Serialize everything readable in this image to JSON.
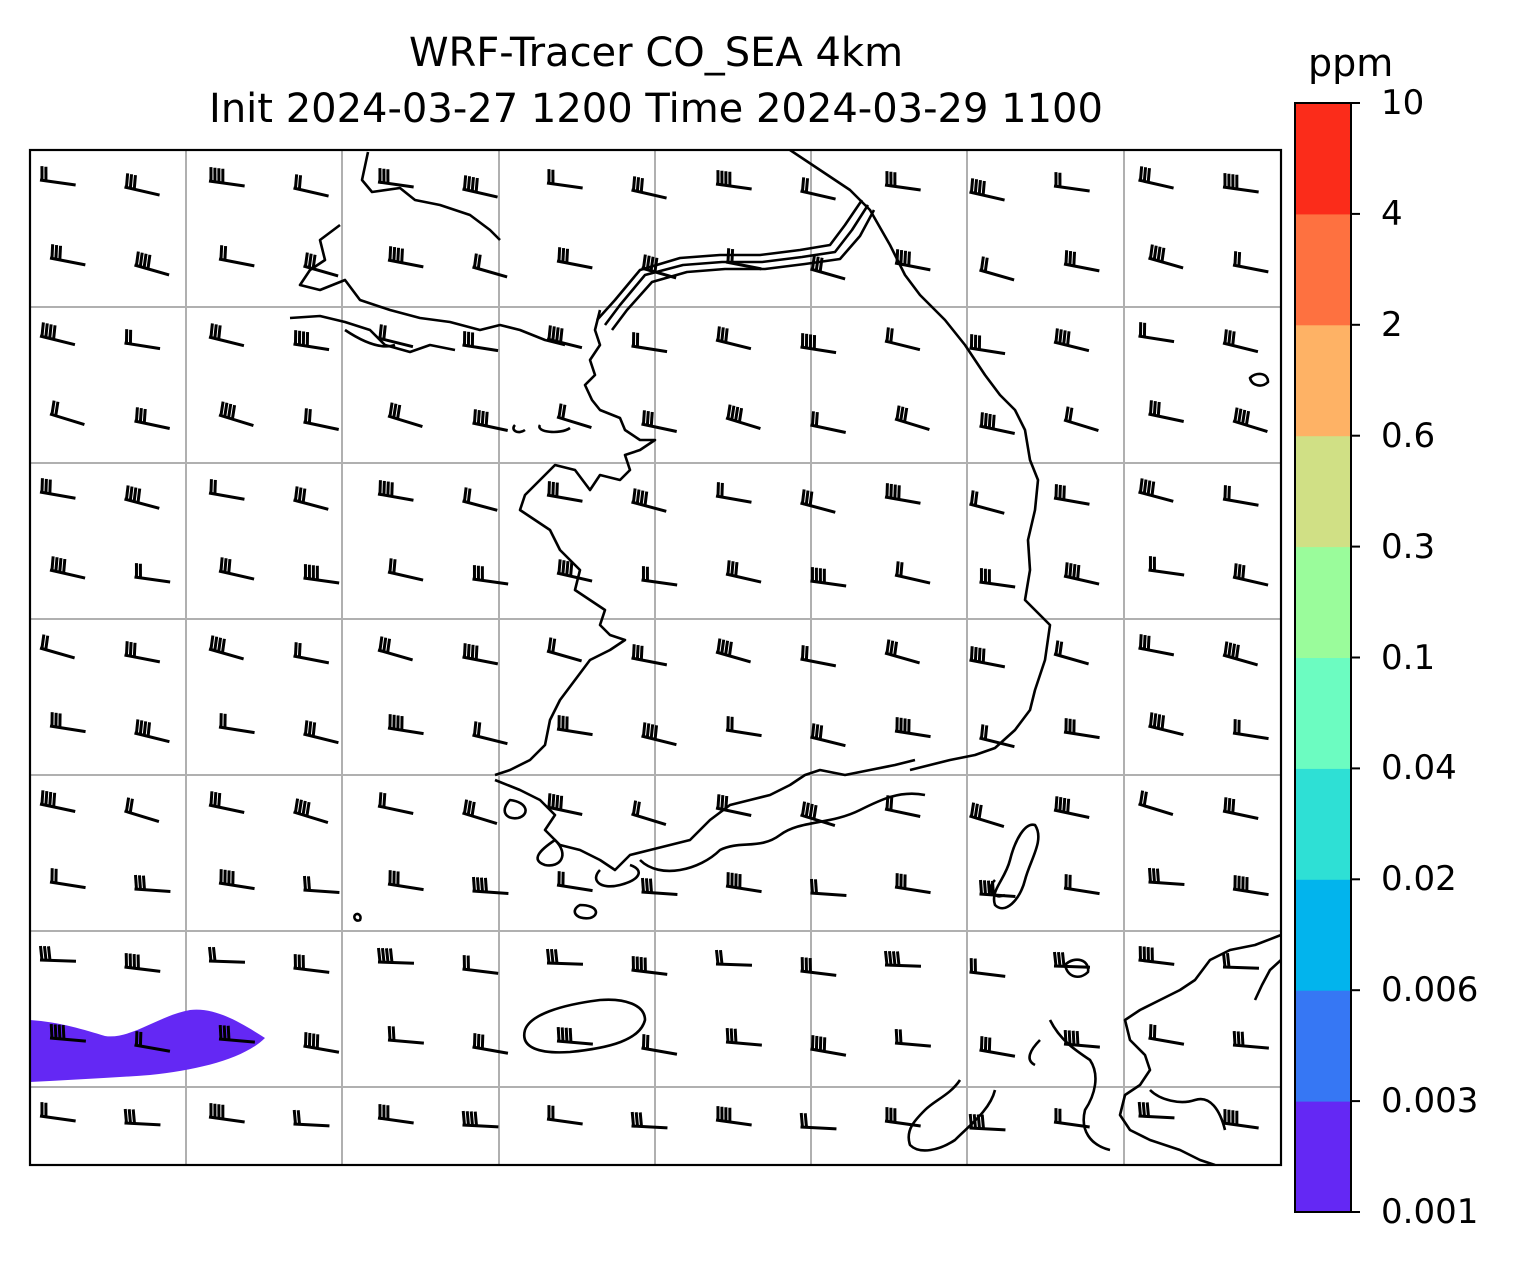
{
  "title": {
    "line1": "WRF-Tracer CO_SEA 4km",
    "line2": "Init 2024-03-27 1200 Time 2024-03-29 1100"
  },
  "colorbar": {
    "unit": "ppm",
    "ticks": [
      "0.001",
      "0.003",
      "0.006",
      "0.02",
      "0.04",
      "0.1",
      "0.3",
      "0.6",
      "2",
      "4",
      "10"
    ],
    "colors": [
      "#6428f4",
      "#3677f4",
      "#02b4ed",
      "#2ee0d5",
      "#6cfcc1",
      "#9afc9b",
      "#d0e085",
      "#feb265",
      "#fe7140",
      "#fb2c1a"
    ]
  },
  "map": {
    "gridlines": true,
    "coastline_color": "#000000",
    "wind_barbs": "westerly winds across the domain",
    "plume": {
      "color": "#6428f4",
      "level": "0.001-0.003 ppm"
    }
  }
}
